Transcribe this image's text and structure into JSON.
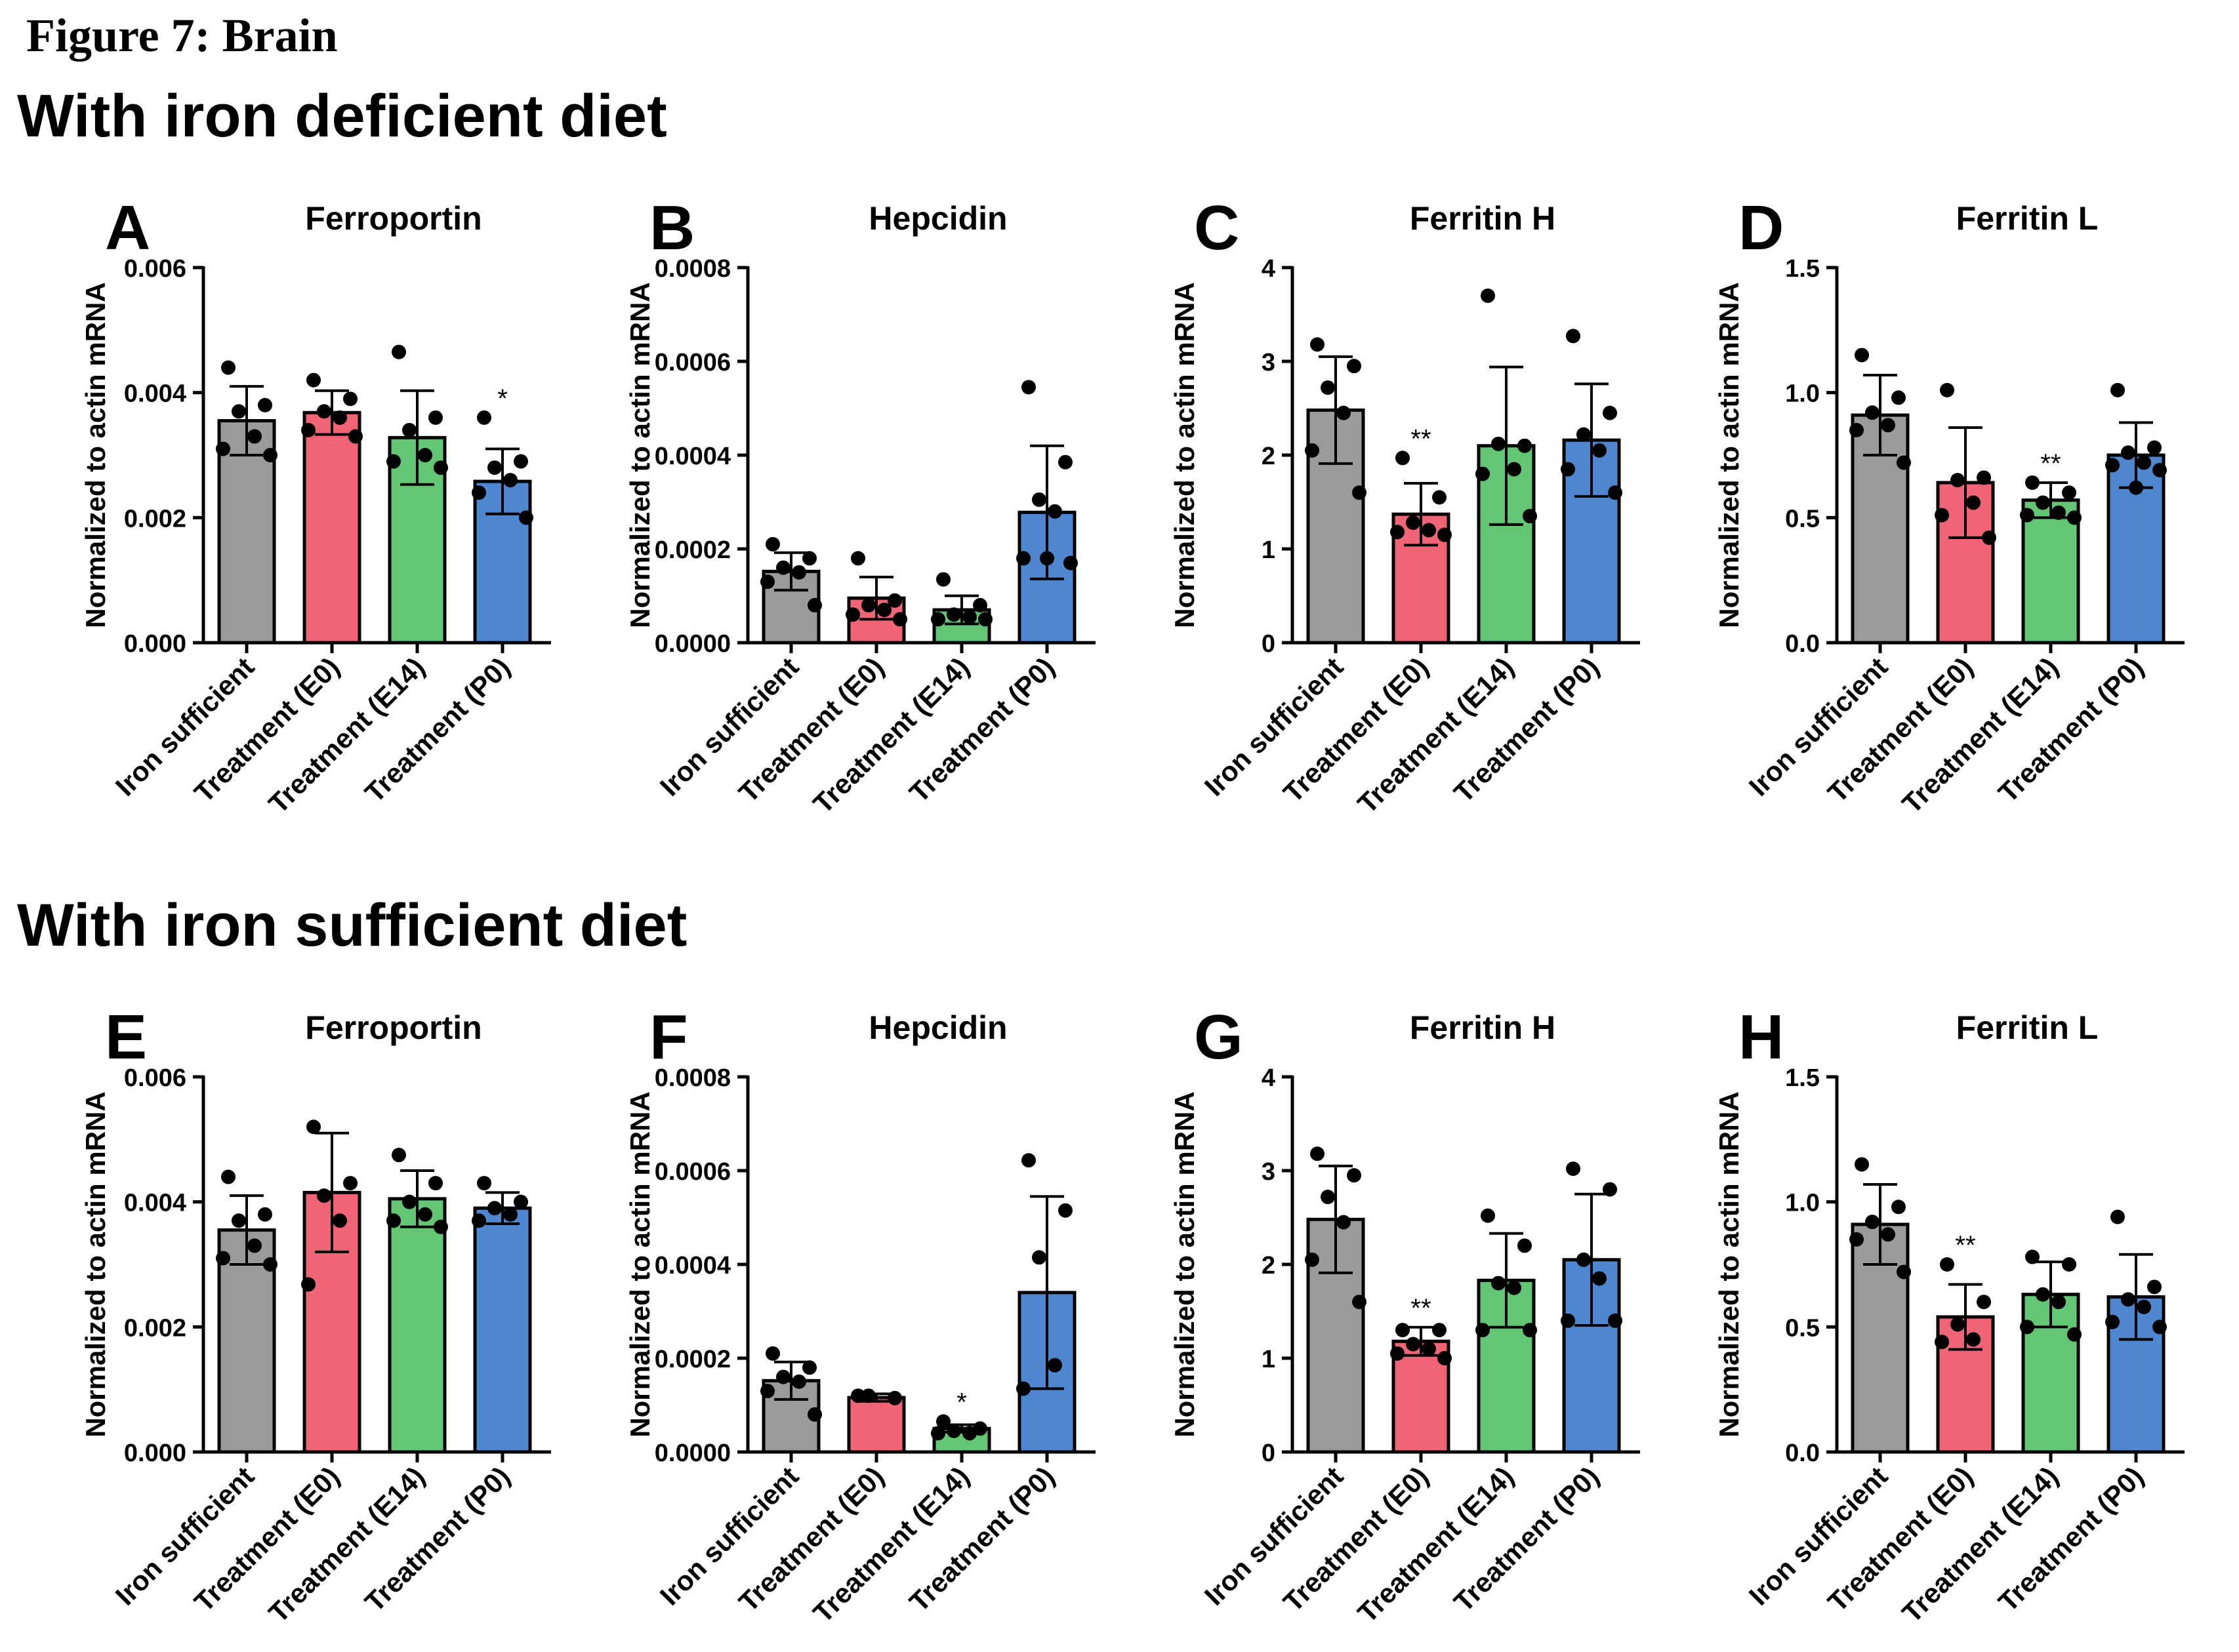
{
  "figure_title": "Figure 7: Brain",
  "section_titles": [
    "With iron deficient diet",
    "With iron sufficient diet"
  ],
  "y_axis_label": "Normalized to actin mRNA",
  "categories": [
    "Iron sufficient",
    "Treatment (E0)",
    "Treatment (E14)",
    "Treatment (P0)"
  ],
  "colors": {
    "bars": [
      "#9a9a9a",
      "#ef6575",
      "#62c674",
      "#4f86d0"
    ],
    "ink": "#000000",
    "background": "#ffffff"
  },
  "chart_data": [
    {
      "panel": "A",
      "title": "Ferroportin",
      "type": "bar",
      "categories": [
        "Iron sufficient",
        "Treatment (E0)",
        "Treatment (E14)",
        "Treatment (P0)"
      ],
      "ylabel": "Normalized to actin mRNA",
      "ylim": [
        0,
        0.006
      ],
      "yticks": [
        0,
        0.002,
        0.004,
        0.006
      ],
      "ytick_labels": [
        "0.000",
        "0.002",
        "0.004",
        "0.006"
      ],
      "values": [
        0.00355,
        0.00368,
        0.00328,
        0.00258
      ],
      "errors": [
        0.00055,
        0.00035,
        0.00075,
        0.00052
      ],
      "points": [
        [
          0.0044,
          0.0038,
          0.0037,
          0.0033,
          0.0031,
          0.003
        ],
        [
          0.0042,
          0.0039,
          0.0037,
          0.0036,
          0.0034,
          0.0033
        ],
        [
          0.00465,
          0.0036,
          0.0034,
          0.003,
          0.0029,
          0.0028
        ],
        [
          0.0036,
          0.0029,
          0.0028,
          0.0026,
          0.0024,
          0.002
        ]
      ],
      "annotations": [
        "",
        "",
        "",
        "*"
      ]
    },
    {
      "panel": "B",
      "title": "Hepcidin",
      "type": "bar",
      "categories": [
        "Iron sufficient",
        "Treatment (E0)",
        "Treatment (E14)",
        "Treatment (P0)"
      ],
      "ylabel": "Normalized to actin mRNA",
      "ylim": [
        0,
        0.0008
      ],
      "yticks": [
        0,
        0.0002,
        0.0004,
        0.0006,
        0.0008
      ],
      "ytick_labels": [
        "0.0000",
        "0.0002",
        "0.0004",
        "0.0006",
        "0.0008"
      ],
      "values": [
        0.000152,
        9.5e-05,
        7e-05,
        0.000278
      ],
      "errors": [
        4e-05,
        4.5e-05,
        3e-05,
        0.000142
      ],
      "points": [
        [
          0.00021,
          0.00018,
          0.00016,
          0.00015,
          0.00013,
          8e-05
        ],
        [
          0.00018,
          9e-05,
          8e-05,
          7e-05,
          6e-05,
          5e-05
        ],
        [
          0.000135,
          8e-05,
          6e-05,
          5.5e-05,
          5e-05,
          5e-05
        ],
        [
          0.000545,
          0.000385,
          0.000305,
          0.00028,
          0.00018,
          0.00017,
          0.00018
        ]
      ],
      "annotations": [
        "",
        "",
        "",
        ""
      ]
    },
    {
      "panel": "C",
      "title": "Ferritin H",
      "type": "bar",
      "categories": [
        "Iron sufficient",
        "Treatment (E0)",
        "Treatment (E14)",
        "Treatment (P0)"
      ],
      "ylabel": "Normalized to actin mRNA",
      "ylim": [
        0,
        4
      ],
      "yticks": [
        0,
        1,
        2,
        3,
        4
      ],
      "ytick_labels": [
        "0",
        "1",
        "2",
        "3",
        "4"
      ],
      "values": [
        2.48,
        1.37,
        2.1,
        2.16
      ],
      "errors": [
        0.57,
        0.33,
        0.84,
        0.6
      ],
      "points": [
        [
          3.18,
          2.95,
          2.72,
          2.45,
          2.05,
          1.6
        ],
        [
          1.97,
          1.55,
          1.28,
          1.2,
          1.18,
          1.15
        ],
        [
          3.7,
          2.1,
          2.12,
          1.85,
          1.8,
          1.35
        ],
        [
          3.27,
          2.45,
          2.22,
          2.05,
          1.85,
          1.6
        ]
      ],
      "annotations": [
        "",
        "**",
        "",
        ""
      ]
    },
    {
      "panel": "D",
      "title": "Ferritin L",
      "type": "bar",
      "categories": [
        "Iron sufficient",
        "Treatment (E0)",
        "Treatment (E14)",
        "Treatment (P0)"
      ],
      "ylabel": "Normalized to actin mRNA",
      "ylim": [
        0,
        1.5
      ],
      "yticks": [
        0,
        0.5,
        1.0,
        1.5
      ],
      "ytick_labels": [
        "0.0",
        "0.5",
        "1.0",
        "1.5"
      ],
      "values": [
        0.91,
        0.64,
        0.57,
        0.75
      ],
      "errors": [
        0.16,
        0.22,
        0.07,
        0.13
      ],
      "points": [
        [
          1.15,
          0.98,
          0.92,
          0.87,
          0.85,
          0.72
        ],
        [
          1.01,
          0.66,
          0.65,
          0.56,
          0.51,
          0.42
        ],
        [
          0.64,
          0.6,
          0.56,
          0.52,
          0.51,
          0.5
        ],
        [
          1.01,
          0.78,
          0.76,
          0.72,
          0.71,
          0.69,
          0.62
        ]
      ],
      "annotations": [
        "",
        "",
        "**",
        ""
      ]
    },
    {
      "panel": "E",
      "title": "Ferroportin",
      "type": "bar",
      "categories": [
        "Iron sufficient",
        "Treatment (E0)",
        "Treatment (E14)",
        "Treatment (P0)"
      ],
      "ylabel": "Normalized to actin mRNA",
      "ylim": [
        0,
        0.006
      ],
      "yticks": [
        0,
        0.002,
        0.004,
        0.006
      ],
      "ytick_labels": [
        "0.000",
        "0.002",
        "0.004",
        "0.006"
      ],
      "values": [
        0.00355,
        0.00415,
        0.00405,
        0.0039
      ],
      "errors": [
        0.00055,
        0.00095,
        0.00045,
        0.00025
      ],
      "points": [
        [
          0.0044,
          0.0038,
          0.0037,
          0.0033,
          0.0031,
          0.003
        ],
        [
          0.0052,
          0.0043,
          0.0041,
          0.0037,
          0.00268
        ],
        [
          0.00475,
          0.0043,
          0.004,
          0.0038,
          0.0037,
          0.0036
        ],
        [
          0.0043,
          0.004,
          0.0039,
          0.0038,
          0.0037
        ]
      ],
      "annotations": [
        "",
        "",
        "",
        ""
      ]
    },
    {
      "panel": "F",
      "title": "Hepcidin",
      "type": "bar",
      "categories": [
        "Iron sufficient",
        "Treatment (E0)",
        "Treatment (E14)",
        "Treatment (P0)"
      ],
      "ylabel": "Normalized to actin mRNA",
      "ylim": [
        0,
        0.0008
      ],
      "yticks": [
        0,
        0.0002,
        0.0004,
        0.0006,
        0.0008
      ],
      "ytick_labels": [
        "0.0000",
        "0.0002",
        "0.0004",
        "0.0006",
        "0.0008"
      ],
      "values": [
        0.000152,
        0.000116,
        5e-05,
        0.00034
      ],
      "errors": [
        4e-05,
        8e-06,
        8e-06,
        0.000205
      ],
      "points": [
        [
          0.00021,
          0.00018,
          0.00016,
          0.00015,
          0.00013,
          8e-05
        ],
        [
          0.00012,
          0.000115,
          0.00012
        ],
        [
          6.5e-05,
          5e-05,
          4.5e-05,
          4e-05,
          4e-05
        ],
        [
          0.000622,
          0.000515,
          0.000415,
          0.000185,
          0.000135
        ]
      ],
      "annotations": [
        "",
        "",
        "*",
        ""
      ]
    },
    {
      "panel": "G",
      "title": "Ferritin H",
      "type": "bar",
      "categories": [
        "Iron sufficient",
        "Treatment (E0)",
        "Treatment (E14)",
        "Treatment (P0)"
      ],
      "ylabel": "Normalized to actin mRNA",
      "ylim": [
        0,
        4
      ],
      "yticks": [
        0,
        1,
        2,
        3,
        4
      ],
      "ytick_labels": [
        "0",
        "1",
        "2",
        "3",
        "4"
      ],
      "values": [
        2.48,
        1.18,
        1.83,
        2.05
      ],
      "errors": [
        0.57,
        0.15,
        0.5,
        0.7
      ],
      "points": [
        [
          3.18,
          2.95,
          2.72,
          2.45,
          2.05,
          1.6
        ],
        [
          1.3,
          1.3,
          1.15,
          1.1,
          1.05,
          1.0
        ],
        [
          2.52,
          2.2,
          1.8,
          1.75,
          1.3,
          1.3
        ],
        [
          3.02,
          2.8,
          2.05,
          1.85,
          1.4,
          1.4
        ]
      ],
      "annotations": [
        "",
        "**",
        "",
        ""
      ]
    },
    {
      "panel": "H",
      "title": "Ferritin L",
      "type": "bar",
      "categories": [
        "Iron sufficient",
        "Treatment (E0)",
        "Treatment (E14)",
        "Treatment (P0)"
      ],
      "ylabel": "Normalized to actin mRNA",
      "ylim": [
        0,
        1.5
      ],
      "yticks": [
        0,
        0.5,
        1.0,
        1.5
      ],
      "ytick_labels": [
        "0.0",
        "0.5",
        "1.0",
        "1.5"
      ],
      "values": [
        0.91,
        0.54,
        0.63,
        0.62
      ],
      "errors": [
        0.16,
        0.13,
        0.13,
        0.17
      ],
      "points": [
        [
          1.15,
          0.98,
          0.92,
          0.87,
          0.85,
          0.72
        ],
        [
          0.75,
          0.6,
          0.51,
          0.45,
          0.44
        ],
        [
          0.78,
          0.75,
          0.63,
          0.6,
          0.5,
          0.47
        ],
        [
          0.94,
          0.66,
          0.61,
          0.58,
          0.52,
          0.5
        ]
      ],
      "annotations": [
        "",
        "**",
        "",
        ""
      ]
    }
  ]
}
